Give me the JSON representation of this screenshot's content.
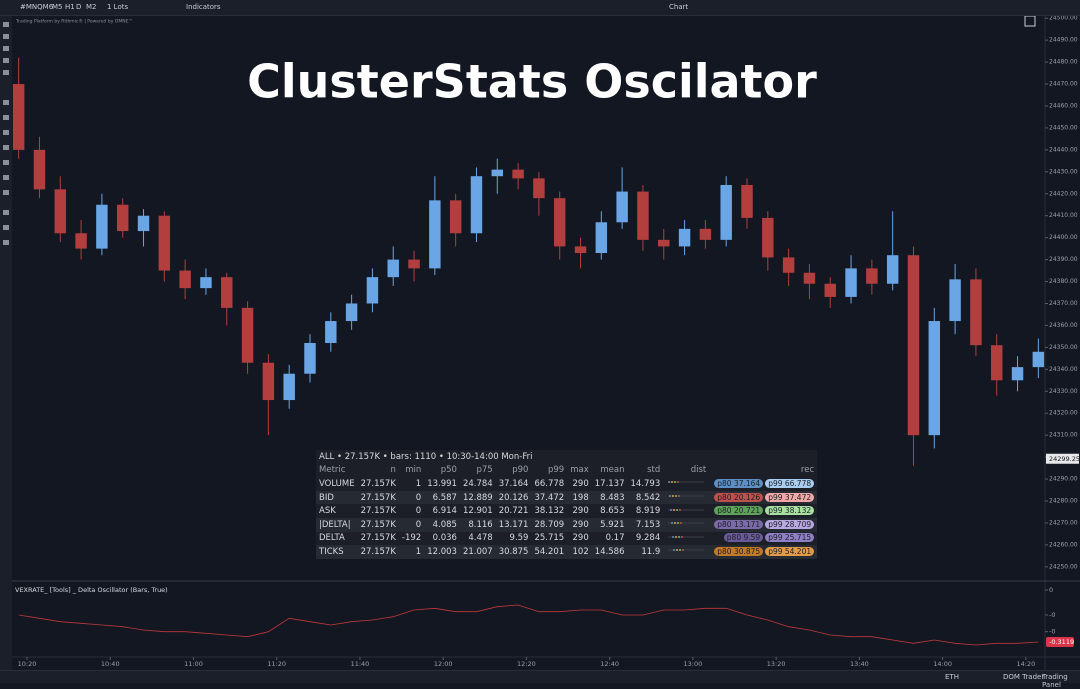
{
  "toolbar": {
    "symbol": "#MNQM6",
    "timeframes": [
      "M5",
      "H1",
      "D",
      "M2"
    ],
    "lots": "1 Lots",
    "indicators": "Indicators",
    "window_title": "Chart"
  },
  "watermark": "Trading Platform by Rithmic® | Powered by OMNE™",
  "chart_data": [
    {
      "type": "candlestick",
      "title": "ClusterStats Oscilator",
      "x": [
        618,
        623,
        628,
        633,
        638,
        643,
        648,
        653,
        658,
        663,
        668,
        673,
        678,
        683,
        688,
        693,
        698,
        703,
        708,
        713,
        718,
        723,
        728,
        733,
        738,
        743,
        748,
        753,
        758,
        763,
        768,
        773,
        778,
        783,
        788,
        793,
        798,
        803,
        808,
        813,
        818,
        823,
        828,
        833,
        838,
        843,
        848,
        853,
        858,
        863
      ],
      "ohlc": [
        [
          24470,
          24482,
          24436,
          24440
        ],
        [
          24440,
          24446,
          24418,
          24422
        ],
        [
          24422,
          24428,
          24398,
          24402
        ],
        [
          24402,
          24408,
          24390,
          24395
        ],
        [
          24395,
          24420,
          24392,
          24415
        ],
        [
          24415,
          24418,
          24400,
          24403
        ],
        [
          24403,
          24413,
          24396,
          24410
        ],
        [
          24410,
          24412,
          24380,
          24385
        ],
        [
          24385,
          24390,
          24372,
          24377
        ],
        [
          24377,
          24386,
          24374,
          24382
        ],
        [
          24382,
          24384,
          24360,
          24368
        ],
        [
          24368,
          24371,
          24338,
          24343
        ],
        [
          24343,
          24347,
          24310,
          24326
        ],
        [
          24326,
          24342,
          24322,
          24338
        ],
        [
          24338,
          24356,
          24334,
          24352
        ],
        [
          24352,
          24366,
          24348,
          24362
        ],
        [
          24362,
          24374,
          24358,
          24370
        ],
        [
          24370,
          24386,
          24366,
          24382
        ],
        [
          24382,
          24396,
          24378,
          24390
        ],
        [
          24390,
          24394,
          24380,
          24386
        ],
        [
          24386,
          24428,
          24383,
          24417
        ],
        [
          24417,
          24420,
          24396,
          24402
        ],
        [
          24402,
          24432,
          24398,
          24428
        ],
        [
          24428,
          24436,
          24420,
          24431
        ],
        [
          24431,
          24434,
          24422,
          24427
        ],
        [
          24427,
          24430,
          24410,
          24418
        ],
        [
          24418,
          24421,
          24390,
          24396
        ],
        [
          24396,
          24400,
          24386,
          24393
        ],
        [
          24393,
          24412,
          24390,
          24407
        ],
        [
          24407,
          24432,
          24404,
          24421
        ],
        [
          24421,
          24424,
          24394,
          24399
        ],
        [
          24399,
          24404,
          24390,
          24396
        ],
        [
          24396,
          24408,
          24392,
          24404
        ],
        [
          24404,
          24408,
          24395,
          24399
        ],
        [
          24399,
          24428,
          24396,
          24424
        ],
        [
          24424,
          24427,
          24404,
          24409
        ],
        [
          24409,
          24412,
          24385,
          24391
        ],
        [
          24391,
          24395,
          24378,
          24384
        ],
        [
          24384,
          24388,
          24372,
          24379
        ],
        [
          24379,
          24382,
          24368,
          24373
        ],
        [
          24373,
          24392,
          24370,
          24386
        ],
        [
          24386,
          24390,
          24374,
          24379
        ],
        [
          24379,
          24412,
          24376,
          24392
        ],
        [
          24392,
          24396,
          24296,
          24310
        ],
        [
          24310,
          24368,
          24304,
          24362
        ],
        [
          24362,
          24388,
          24356,
          24381
        ],
        [
          24381,
          24386,
          24346,
          24351
        ],
        [
          24351,
          24356,
          24328,
          24335
        ],
        [
          24335,
          24346,
          24330,
          24341
        ],
        [
          24341,
          24354,
          24336,
          24348
        ]
      ],
      "up_color": "#6aa5e6",
      "down_color": "#b23f3d",
      "xlim": [
        616.4,
        864.6
      ],
      "ylim": [
        24244,
        24501
      ],
      "yticks": [
        {
          "value": 24500,
          "label": "24500.00"
        },
        {
          "value": 24490,
          "label": "24490.00"
        },
        {
          "value": 24480,
          "label": "24480.00"
        },
        {
          "value": 24470,
          "label": "24470.00"
        },
        {
          "value": 24460,
          "label": "24460.00"
        },
        {
          "value": 24450,
          "label": "24450.00"
        },
        {
          "value": 24440,
          "label": "24440.00"
        },
        {
          "value": 24430,
          "label": "24430.00"
        },
        {
          "value": 24420,
          "label": "24420.00"
        },
        {
          "value": 24410,
          "label": "24410.00"
        },
        {
          "value": 24400,
          "label": "24400.00"
        },
        {
          "value": 24390,
          "label": "24390.00"
        },
        {
          "value": 24380,
          "label": "24380.00"
        },
        {
          "value": 24370,
          "label": "24370.00"
        },
        {
          "value": 24360,
          "label": "24360.00"
        },
        {
          "value": 24350,
          "label": "24350.00"
        },
        {
          "value": 24340,
          "label": "24340.00"
        },
        {
          "value": 24330,
          "label": "24330.00"
        },
        {
          "value": 24320,
          "label": "24320.00"
        },
        {
          "value": 24310,
          "label": "24310.00"
        },
        {
          "value": 24300,
          "label": "24300.00"
        },
        {
          "value": 24290,
          "label": "24290.00"
        },
        {
          "value": 24280,
          "label": "24280.00"
        },
        {
          "value": 24270,
          "label": "24270.00"
        },
        {
          "value": 24260,
          "label": "24260.00"
        },
        {
          "value": 24250,
          "label": "24250.00"
        }
      ],
      "last_price": 24299.25
    },
    {
      "type": "line",
      "title": "VEXRATE_ [Tools] _ Delta Oscillator (Bars, True)",
      "color": "#c0393b",
      "x": [
        618,
        623,
        628,
        633,
        638,
        643,
        648,
        653,
        658,
        663,
        668,
        673,
        678,
        683,
        688,
        693,
        698,
        703,
        708,
        713,
        718,
        723,
        728,
        733,
        738,
        743,
        748,
        753,
        758,
        763,
        768,
        773,
        778,
        783,
        788,
        793,
        798,
        803,
        808,
        813,
        818,
        823,
        828,
        833,
        838,
        843,
        848,
        853,
        858,
        863
      ],
      "values": [
        -0.15,
        -0.17,
        -0.19,
        -0.2,
        -0.21,
        -0.22,
        -0.24,
        -0.25,
        -0.25,
        -0.26,
        -0.27,
        -0.28,
        -0.25,
        -0.17,
        -0.19,
        -0.21,
        -0.19,
        -0.18,
        -0.16,
        -0.12,
        -0.11,
        -0.13,
        -0.13,
        -0.1,
        -0.09,
        -0.13,
        -0.13,
        -0.12,
        -0.12,
        -0.15,
        -0.15,
        -0.12,
        -0.12,
        -0.11,
        -0.11,
        -0.15,
        -0.18,
        -0.22,
        -0.24,
        -0.27,
        -0.28,
        -0.28,
        -0.3,
        -0.32,
        -0.3,
        -0.32,
        -0.33,
        -0.32,
        -0.32,
        -0.3119
      ],
      "xlim": [
        616.4,
        864.6
      ],
      "ylim": [
        -0.39,
        0.03
      ],
      "yticks": [
        0,
        {
          "value": -0.15,
          "label": "-0"
        },
        {
          "value": -0.25,
          "label": "-0"
        }
      ],
      "xticks": [
        {
          "value": 620,
          "label": "10:20"
        },
        {
          "value": 640,
          "label": "10:40"
        },
        {
          "value": 660,
          "label": "11:00"
        },
        {
          "value": 680,
          "label": "11:20"
        },
        {
          "value": 700,
          "label": "11:40"
        },
        {
          "value": 720,
          "label": "12:00"
        },
        {
          "value": 740,
          "label": "12:20"
        },
        {
          "value": 760,
          "label": "12:40"
        },
        {
          "value": 780,
          "label": "13:00"
        },
        {
          "value": 800,
          "label": "13:20"
        },
        {
          "value": 820,
          "label": "13:40"
        },
        {
          "value": 840,
          "label": "14:00"
        },
        {
          "value": 860,
          "label": "14:20"
        }
      ]
    }
  ],
  "stats_table": {
    "header": "ALL • 27.157K • bars: 1110 • 10:30-14:00 Mon-Fri",
    "columns": [
      "Metric",
      "n",
      "min",
      "p50",
      "p75",
      "p90",
      "p99",
      "max",
      "mean",
      "std",
      "dist",
      "rec"
    ],
    "rows": [
      {
        "cells": [
          "VOLUME",
          "27.157K",
          "1",
          "13.991",
          "24.784",
          "37.164",
          "66.778",
          "290",
          "17.137",
          "14.793"
        ],
        "rec": [
          "p80 37.164",
          "p99 66.778"
        ],
        "pill_colors": [
          "#5d8fc4",
          "#a9cdf0"
        ]
      },
      {
        "cells": [
          "BID",
          "27.157K",
          "0",
          "6.587",
          "12.889",
          "20.126",
          "37.472",
          "198",
          "8.483",
          "8.542"
        ],
        "rec": [
          "p80 20.126",
          "p99 37.472"
        ],
        "pill_colors": [
          "#c0504d",
          "#f0a9a6"
        ]
      },
      {
        "cells": [
          "ASK",
          "27.157K",
          "0",
          "6.914",
          "12.901",
          "20.721",
          "38.132",
          "290",
          "8.653",
          "8.919"
        ],
        "rec": [
          "p80 20.721",
          "p99 38.132"
        ],
        "pill_colors": [
          "#5fa35a",
          "#a8e0a0"
        ]
      },
      {
        "cells": [
          "|DELTA|",
          "27.157K",
          "0",
          "4.085",
          "8.116",
          "13.171",
          "28.709",
          "290",
          "5.921",
          "7.153"
        ],
        "rec": [
          "p80 13.171",
          "p99 28.709"
        ],
        "pill_colors": [
          "#7b6aa8",
          "#b7a8e0"
        ]
      },
      {
        "cells": [
          "DELTA",
          "27.157K",
          "-192",
          "0.036",
          "4.478",
          "9.59",
          "25.715",
          "290",
          "0.17",
          "9.284"
        ],
        "rec": [
          "p80 9.59",
          "p99 25.715"
        ],
        "pill_colors": [
          "#6a5a98",
          "#8f7fc4"
        ]
      },
      {
        "cells": [
          "TICKS",
          "27.157K",
          "1",
          "12.003",
          "21.007",
          "30.875",
          "54.201",
          "102",
          "14.586",
          "11.9"
        ],
        "rec": [
          "p80 30.875",
          "p99 54.201"
        ],
        "pill_colors": [
          "#c07a2a",
          "#e09a48"
        ]
      }
    ]
  },
  "status_bar": {
    "session": "ETH",
    "buttons": [
      "DOM Trader",
      "Trading Panel"
    ]
  }
}
